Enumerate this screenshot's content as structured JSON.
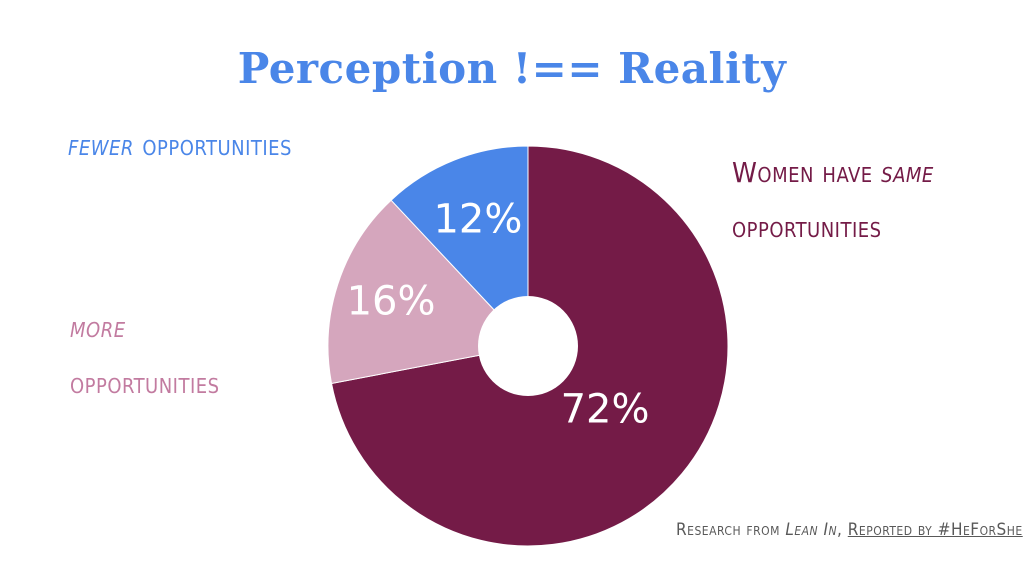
{
  "title": "Perception !== Reality",
  "labels": {
    "fewer_emph": "fewer",
    "fewer_rest": " opportunities",
    "more_emph": "more",
    "more_rest": "opportunities",
    "same_pre": "Women have ",
    "same_emph": "same",
    "same_rest": "opportunities"
  },
  "footer": {
    "prefix": "Research from ",
    "source": "Lean In",
    "sep": ", ",
    "reported": "Reported by #HeForShe"
  },
  "chart_data": {
    "type": "pie",
    "donut": true,
    "start_angle_deg": 0,
    "direction": "clockwise",
    "slices": [
      {
        "label": "Women have same opportunities",
        "value": 72,
        "display": "72%",
        "color": "#741b47"
      },
      {
        "label": "more opportunities",
        "value": 16,
        "display": "16%",
        "color": "#d5a6bd"
      },
      {
        "label": "fewer opportunities",
        "value": 12,
        "display": "12%",
        "color": "#4a86e8"
      }
    ]
  }
}
